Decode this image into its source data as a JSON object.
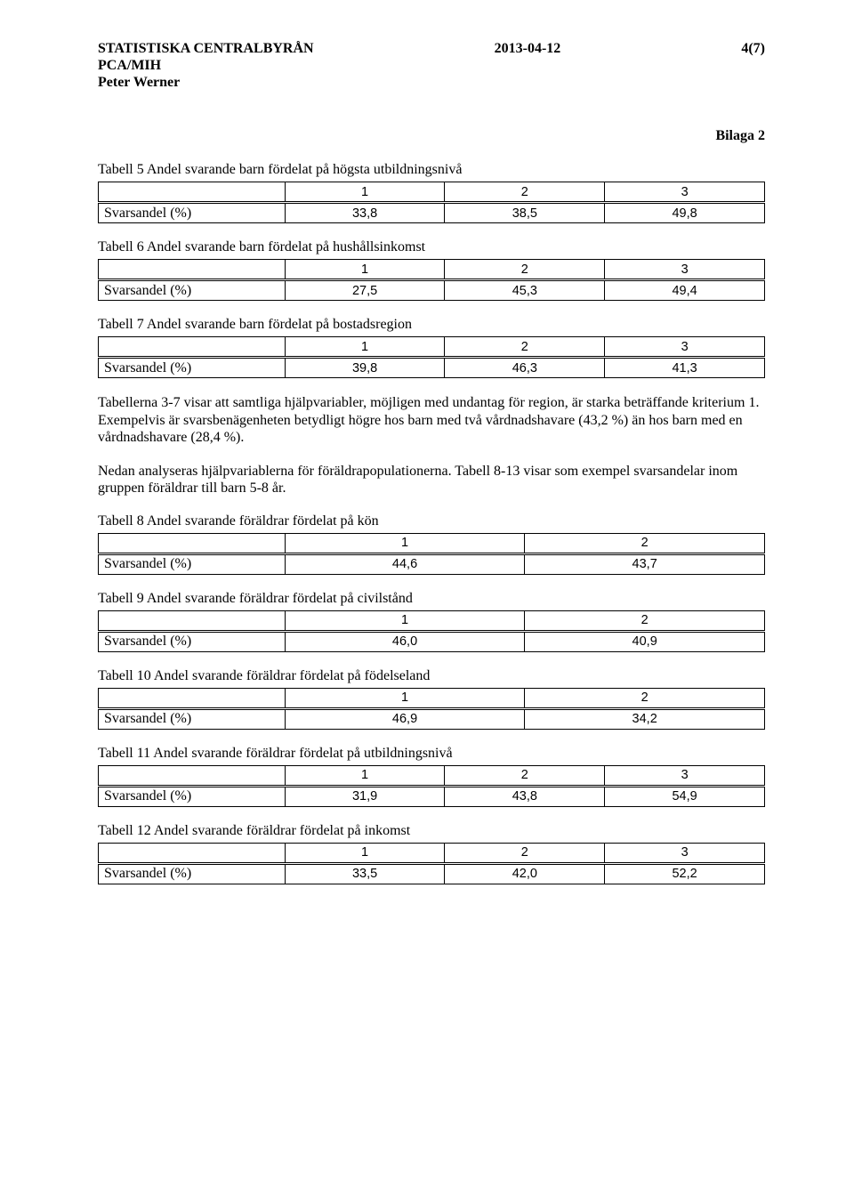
{
  "header": {
    "org": "STATISTISKA CENTRALBYRÅN",
    "date": "2013-04-12",
    "page": "4(7)",
    "dept": "PCA/MIH",
    "author": "Peter Werner"
  },
  "appendix": "Bilaga 2",
  "common": {
    "rowlabel": "Svarsandel (%)",
    "h1": "1",
    "h2": "2",
    "h3": "3"
  },
  "tables": {
    "t5": {
      "caption": "Tabell 5  Andel svarande barn fördelat på högsta utbildningsnivå",
      "v": [
        "33,8",
        "38,5",
        "49,8"
      ]
    },
    "t6": {
      "caption": "Tabell 6  Andel svarande barn fördelat på hushållsinkomst",
      "v": [
        "27,5",
        "45,3",
        "49,4"
      ]
    },
    "t7": {
      "caption": "Tabell 7  Andel svarande barn fördelat på bostadsregion",
      "v": [
        "39,8",
        "46,3",
        "41,3"
      ]
    },
    "t8": {
      "caption": "Tabell 8  Andel svarande föräldrar fördelat på kön",
      "v": [
        "44,6",
        "43,7"
      ]
    },
    "t9": {
      "caption": "Tabell 9  Andel svarande föräldrar fördelat på civilstånd",
      "v": [
        "46,0",
        "40,9"
      ]
    },
    "t10": {
      "caption": "Tabell 10  Andel svarande föräldrar fördelat på födelseland",
      "v": [
        "46,9",
        "34,2"
      ]
    },
    "t11": {
      "caption": "Tabell 11  Andel svarande föräldrar fördelat på utbildningsnivå",
      "v": [
        "31,9",
        "43,8",
        "54,9"
      ]
    },
    "t12": {
      "caption": "Tabell 12  Andel svarande föräldrar fördelat på inkomst",
      "v": [
        "33,5",
        "42,0",
        "52,2"
      ]
    }
  },
  "paragraphs": {
    "p1": "Tabellerna 3-7 visar att samtliga hjälpvariabler, möjligen med undantag för region, är starka beträffande kriterium 1. Exempelvis är svarsbenägenheten betydligt högre hos barn med två vårdnadshavare (43,2 %) än hos barn med en vårdnadshavare (28,4 %).",
    "p2": "Nedan analyseras hjälpvariablerna för föräldrapopulationerna. Tabell 8-13 visar som exempel svarsandelar inom gruppen föräldrar till barn 5-8 år."
  }
}
